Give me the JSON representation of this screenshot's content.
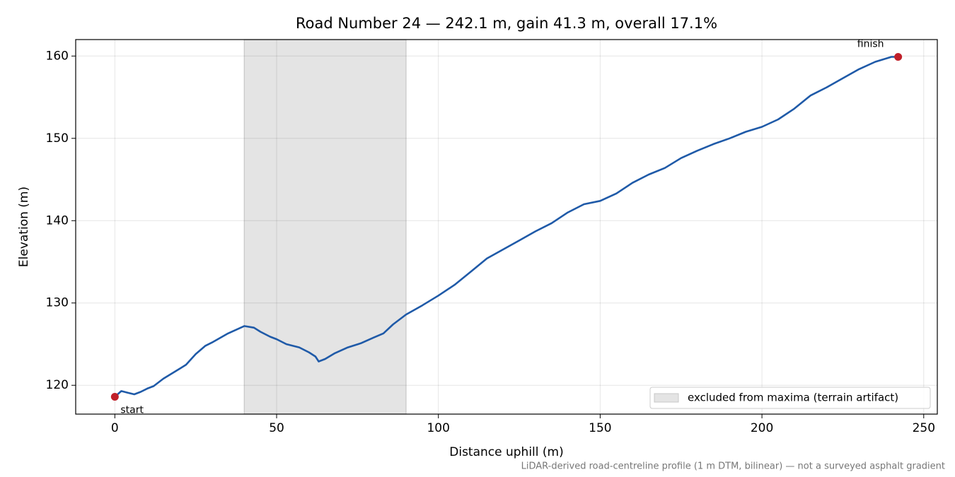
{
  "chart_data": {
    "type": "line",
    "title": "Road Number 24 — 242.1 m, gain 41.3 m, overall 17.1%",
    "xlabel": "Distance uphill (m)",
    "ylabel": "Elevation (m)",
    "note": "LiDAR-derived road-centreline profile (1 m DTM, bilinear) — not a surveyed asphalt gradient",
    "x": [
      0,
      2,
      4,
      6,
      8,
      10,
      12,
      15,
      20,
      22,
      25,
      28,
      30,
      35,
      40,
      43,
      45,
      48,
      50,
      53,
      57,
      60,
      62,
      63,
      65,
      68,
      72,
      76,
      80,
      83,
      86,
      90,
      95,
      100,
      105,
      110,
      115,
      120,
      125,
      130,
      135,
      140,
      145,
      150,
      155,
      160,
      165,
      170,
      175,
      180,
      185,
      190,
      195,
      200,
      205,
      210,
      215,
      220,
      225,
      230,
      235,
      240,
      242.1
    ],
    "series": [
      {
        "color": "#1f5aa8",
        "values": [
          118.6,
          119.3,
          119.1,
          118.9,
          119.2,
          119.6,
          119.9,
          120.8,
          122.0,
          122.5,
          123.8,
          124.8,
          125.2,
          126.3,
          127.2,
          127.0,
          126.5,
          125.9,
          125.6,
          125.0,
          124.6,
          124.0,
          123.5,
          122.9,
          123.2,
          123.9,
          124.6,
          125.1,
          125.8,
          126.3,
          127.4,
          128.6,
          129.7,
          130.9,
          132.2,
          133.8,
          135.4,
          136.5,
          137.6,
          138.7,
          139.7,
          141.0,
          142.0,
          142.4,
          143.3,
          144.6,
          145.6,
          146.4,
          147.6,
          148.5,
          149.3,
          150.0,
          150.8,
          151.4,
          152.3,
          153.6,
          155.2,
          156.2,
          157.3,
          158.4,
          159.3,
          159.9,
          159.9
        ]
      }
    ],
    "endpoints": [
      {
        "text": "start",
        "index": 0,
        "color": "#c0202a"
      },
      {
        "text": "finish",
        "index": 62,
        "color": "#c0202a"
      }
    ],
    "spans": [
      {
        "x0": 40,
        "x1": 90,
        "label": "excluded from maxima (terrain artifact)",
        "color": "#e4e4e4"
      }
    ],
    "xlim": [
      -12.1,
      254.2
    ],
    "ylim": [
      116.5,
      162
    ],
    "xticks": [
      0,
      50,
      100,
      150,
      200,
      250
    ],
    "yticks": [
      120,
      130,
      140,
      150,
      160
    ],
    "grid": true,
    "legend": "lower right"
  }
}
